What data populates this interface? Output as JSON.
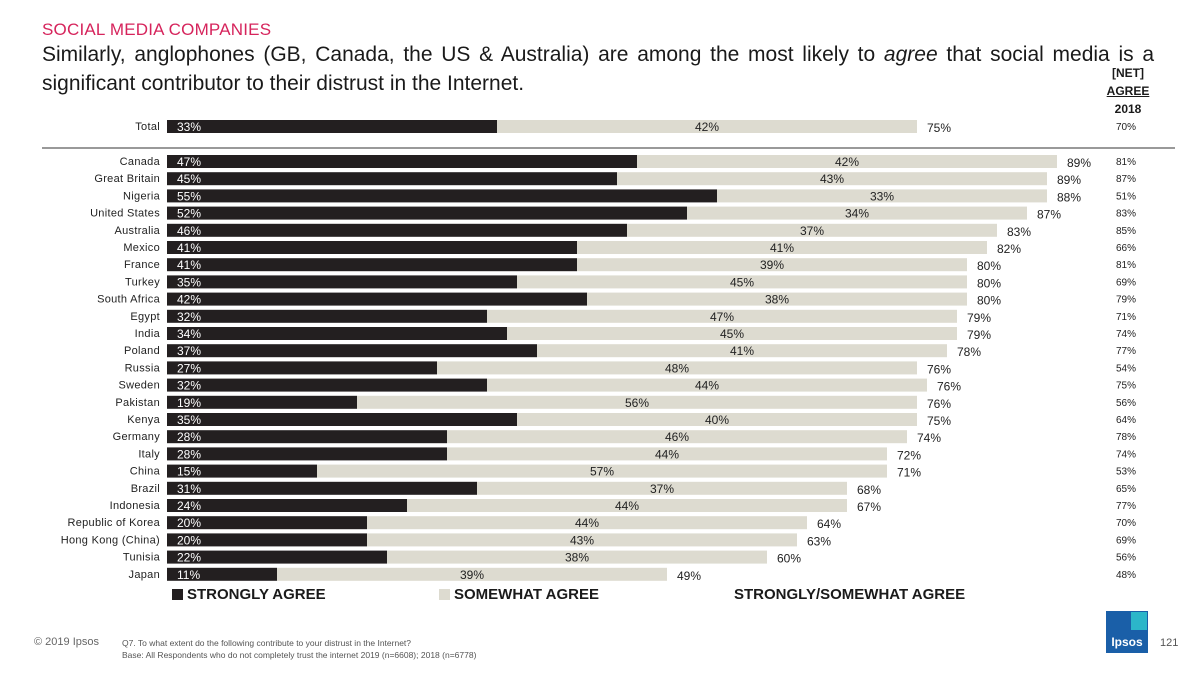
{
  "header": {
    "kicker": "SOCIAL MEDIA COMPANIES",
    "headline_pre": "Similarly, anglophones (GB, Canada, the US & Australia) are among the most likely to ",
    "headline_em": "agree",
    "headline_post": " that social media is a significant contributor to their distrust in the Internet.",
    "net_line1": "[NET]",
    "net_line2": "AGREE",
    "net_line3": "2018"
  },
  "chart_data": {
    "type": "bar",
    "orientation": "horizontal",
    "stacked": true,
    "title": "Similarly, anglophones (GB, Canada, the US & Australia) are among the most likely to agree that social media is a significant contributor to their distrust in the Internet.",
    "unit": "%",
    "xlim": [
      0,
      100
    ],
    "categories": [
      "Total",
      "Canada",
      "Great Britain",
      "Nigeria",
      "United States",
      "Australia",
      "Mexico",
      "France",
      "Turkey",
      "South Africa",
      "Egypt",
      "India",
      "Poland",
      "Russia",
      "Sweden",
      "Pakistan",
      "Kenya",
      "Germany",
      "Italy",
      "China",
      "Brazil",
      "Indonesia",
      "Republic of Korea",
      "Hong Kong (China)",
      "Tunisia",
      "Japan"
    ],
    "series": [
      {
        "name": "STRONGLY AGREE",
        "color": "#231f20",
        "values": [
          33,
          47,
          45,
          55,
          52,
          46,
          41,
          41,
          35,
          42,
          32,
          34,
          37,
          27,
          32,
          19,
          35,
          28,
          28,
          15,
          31,
          24,
          20,
          20,
          22,
          11
        ]
      },
      {
        "name": "SOMEWHAT AGREE",
        "color": "#dddbd0",
        "values": [
          42,
          42,
          43,
          33,
          34,
          37,
          41,
          39,
          45,
          38,
          47,
          45,
          41,
          48,
          44,
          56,
          40,
          46,
          44,
          57,
          37,
          44,
          44,
          43,
          38,
          39
        ]
      }
    ],
    "totals_name": "STRONGLY/SOMEWHAT AGREE",
    "totals": [
      75,
      89,
      89,
      88,
      87,
      83,
      82,
      80,
      80,
      80,
      79,
      79,
      78,
      76,
      76,
      76,
      75,
      74,
      72,
      71,
      68,
      67,
      64,
      63,
      60,
      49
    ],
    "net_agree_2018": [
      70,
      81,
      87,
      51,
      83,
      85,
      66,
      81,
      69,
      79,
      71,
      74,
      77,
      54,
      75,
      56,
      64,
      78,
      74,
      53,
      65,
      77,
      70,
      69,
      56,
      48
    ]
  },
  "legend": {
    "strong": "STRONGLY AGREE",
    "somewhat": "SOMEWHAT AGREE",
    "total": "STRONGLY/SOMEWHAT AGREE"
  },
  "footer": {
    "copyright": "© 2019 Ipsos",
    "question": "Q7.  To what extent do the following contribute to your distrust in the Internet?",
    "base": "Base: All Respondents who do not completely trust the internet 2019 (n=6608); 2018 (n=6778)",
    "logo": "Ipsos",
    "page": "121"
  }
}
